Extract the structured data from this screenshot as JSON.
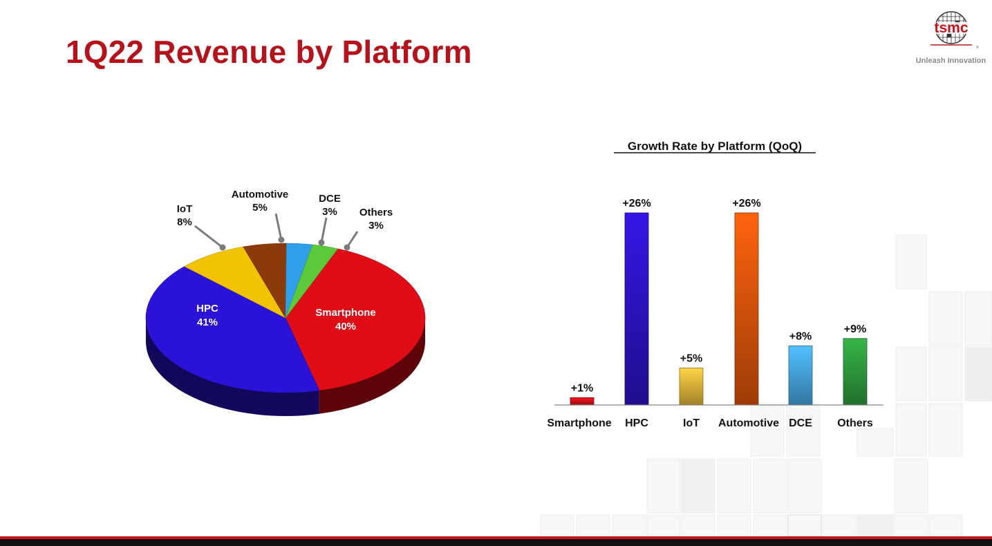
{
  "page": {
    "title": "1Q22 Revenue by Platform",
    "logo": {
      "wordmark": "tsmc",
      "tagline": "Unleash Innovation",
      "icon": "tsmc-wafer-logo-icon"
    },
    "colors": {
      "title": "#b5121b",
      "accent_red": "#c4161c"
    }
  },
  "chart_data": [
    {
      "type": "pie",
      "title": "",
      "categories": [
        "Smartphone",
        "HPC",
        "IoT",
        "Automotive",
        "DCE",
        "Others"
      ],
      "values": [
        40,
        41,
        8,
        5,
        3,
        3
      ],
      "labels": [
        "40%",
        "41%",
        "8%",
        "5%",
        "3%",
        "3%"
      ],
      "colors": [
        "#e00c16",
        "#2a12d8",
        "#f2c300",
        "#8b3a0a",
        "#2f9fea",
        "#5cc93a"
      ],
      "style": "3d"
    },
    {
      "type": "bar",
      "title": "Growth Rate by Platform (QoQ)",
      "categories": [
        "Smartphone",
        "HPC",
        "IoT",
        "Automotive",
        "DCE",
        "Others"
      ],
      "values": [
        1,
        26,
        5,
        26,
        8,
        9
      ],
      "labels": [
        "+1%",
        "+26%",
        "+5%",
        "+26%",
        "+8%",
        "+9%"
      ],
      "colors": [
        "#d9101a",
        "#2d14c8",
        "#e6b83c",
        "#e0560c",
        "#48a8e6",
        "#2f9e3f"
      ],
      "unit": "%",
      "ylim": [
        0,
        26
      ],
      "grid": false
    }
  ]
}
